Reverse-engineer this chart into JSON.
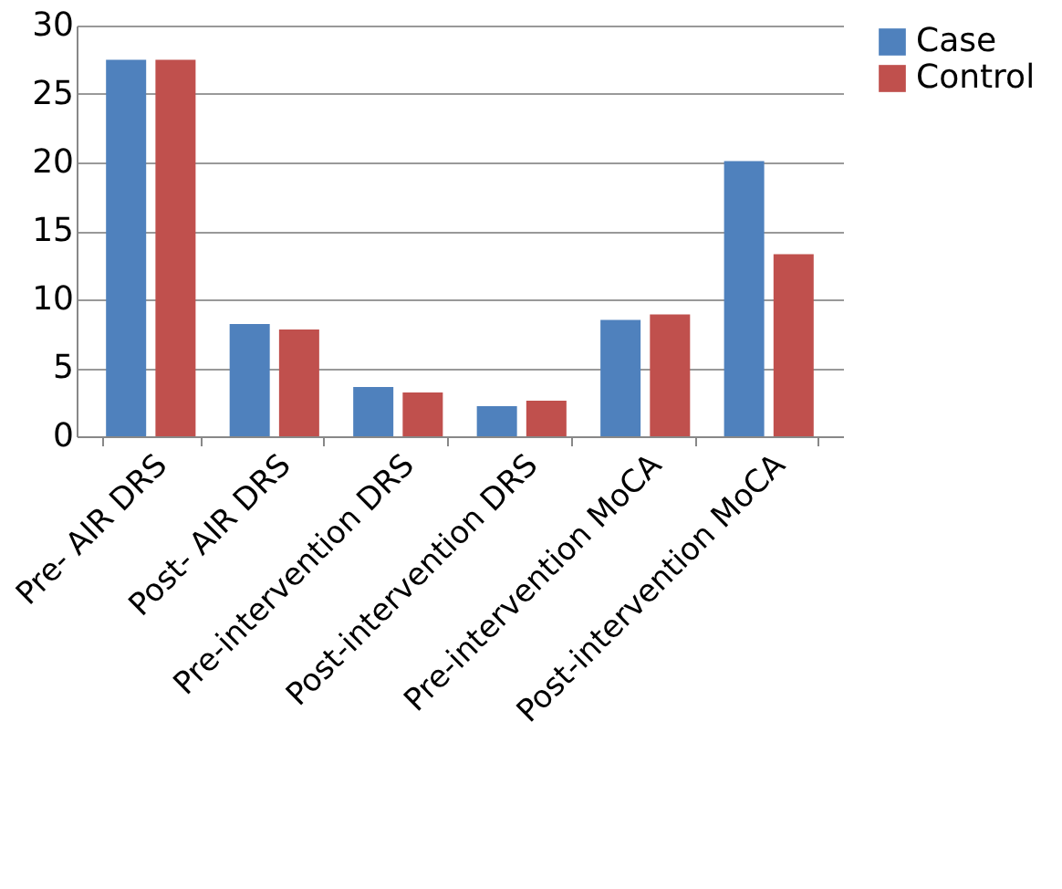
{
  "chart_data": {
    "type": "bar",
    "categories": [
      "Pre- AIR DRS",
      "Post- AIR DRS",
      "Pre-intervention DRS",
      "Post-intervention DRS",
      "Pre-intervention MoCA",
      "Post-intervention MoCA"
    ],
    "series": [
      {
        "name": "Case",
        "color": "#4f81bd",
        "values": [
          27.5,
          8.2,
          3.6,
          2.2,
          8.5,
          20.1
        ]
      },
      {
        "name": "Control",
        "color": "#c0504d",
        "values": [
          27.5,
          7.8,
          3.2,
          2.6,
          8.9,
          13.3
        ]
      }
    ],
    "ylim": [
      0,
      30
    ],
    "yticks": [
      0,
      5,
      10,
      15,
      20,
      25,
      30
    ],
    "grid": "y",
    "legend": "right"
  }
}
